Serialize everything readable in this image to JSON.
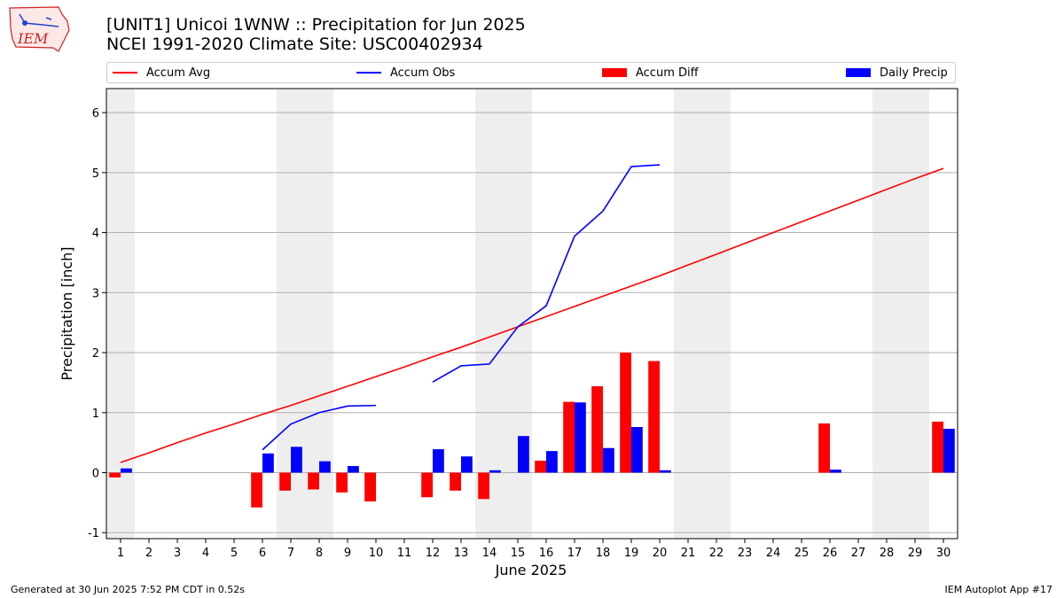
{
  "logo": {
    "text": "IEM"
  },
  "header": {
    "title_line1": "[UNIT1] Unicoi 1WNW :: Precipitation for Jun 2025",
    "title_line2": "NCEI 1991-2020 Climate Site: USC00402934"
  },
  "legend": [
    {
      "label": "Accum Avg",
      "kind": "line",
      "color": "#ff0000"
    },
    {
      "label": "Accum Obs",
      "kind": "line",
      "color": "#0000ff"
    },
    {
      "label": "Accum Diff",
      "kind": "bar",
      "color": "#ff0000"
    },
    {
      "label": "Daily Precip",
      "kind": "bar",
      "color": "#0000ff"
    }
  ],
  "footer": {
    "left": "Generated at 30 Jun 2025 7:52 PM CDT in 0.52s",
    "right": "IEM Autoplot App #17"
  },
  "chart_data": {
    "type": "bar",
    "xlabel": "June 2025",
    "ylabel": "Precipitation [inch]",
    "xlim": [
      0.5,
      30.5
    ],
    "ylim": [
      -1.1,
      6.4
    ],
    "yticks": [
      -1,
      0,
      1,
      2,
      3,
      4,
      5,
      6
    ],
    "x": [
      1,
      2,
      3,
      4,
      5,
      6,
      7,
      8,
      9,
      10,
      11,
      12,
      13,
      14,
      15,
      16,
      17,
      18,
      19,
      20,
      21,
      22,
      23,
      24,
      25,
      26,
      27,
      28,
      29,
      30
    ],
    "grid": "horizontal",
    "weekend_shading": [
      [
        0.5,
        1.5
      ],
      [
        6.5,
        8.5
      ],
      [
        13.5,
        15.5
      ],
      [
        20.5,
        22.5
      ],
      [
        27.5,
        29.5
      ]
    ],
    "shading_color": "#eeeeee",
    "series": [
      {
        "name": "Accum Avg",
        "type": "line",
        "color": "#ff0000",
        "values": [
          0.17,
          0.33,
          0.5,
          0.66,
          0.81,
          0.97,
          1.12,
          1.28,
          1.44,
          1.6,
          1.76,
          1.93,
          2.09,
          2.26,
          2.43,
          2.6,
          2.77,
          2.94,
          3.11,
          3.28,
          3.46,
          3.64,
          3.82,
          4.0,
          4.18,
          4.36,
          4.54,
          4.72,
          4.9,
          5.07
        ]
      },
      {
        "name": "Accum Obs",
        "type": "line",
        "color": "#0000ff",
        "values": [
          null,
          null,
          null,
          null,
          null,
          0.38,
          0.81,
          1.0,
          1.11,
          1.12,
          null,
          1.51,
          1.78,
          1.81,
          2.43,
          2.78,
          3.94,
          4.36,
          5.1,
          5.13,
          null,
          null,
          null,
          null,
          null,
          null,
          null,
          null,
          null,
          null
        ]
      },
      {
        "name": "Accum Diff",
        "type": "bar",
        "color": "#ff0000",
        "values": [
          -0.08,
          0,
          0,
          0,
          0,
          -0.58,
          -0.3,
          -0.28,
          -0.33,
          -0.48,
          0,
          -0.41,
          -0.3,
          -0.44,
          0,
          0.2,
          1.18,
          1.44,
          2.0,
          1.86,
          0,
          0,
          0,
          0,
          0,
          0.82,
          0,
          0,
          0,
          0.85
        ]
      },
      {
        "name": "Daily Precip",
        "type": "bar",
        "color": "#0000ff",
        "values": [
          0.07,
          0,
          0,
          0,
          0,
          0.32,
          0.43,
          0.19,
          0.11,
          0,
          0,
          0.39,
          0.27,
          0.04,
          0.61,
          0.36,
          1.17,
          0.41,
          0.76,
          0.04,
          0,
          0,
          0,
          0,
          0,
          0.05,
          0,
          0,
          0,
          0.73
        ]
      }
    ]
  }
}
